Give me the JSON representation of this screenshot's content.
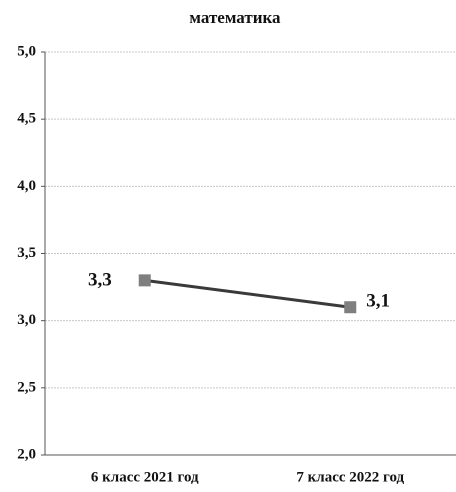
{
  "chart_data": {
    "type": "line",
    "title": "математика",
    "categories": [
      "6 класс 2021 год",
      "7 класс 2022 год"
    ],
    "series": [
      {
        "name": null,
        "color": "#3a3a3a",
        "marker_color": "#7f7f7f",
        "values": [
          3.3,
          3.1
        ],
        "value_labels": [
          "3,3",
          "3,1"
        ]
      }
    ],
    "ylim": [
      2.0,
      5.0
    ],
    "yticks": [
      {
        "value": 2.0,
        "label": "2,0"
      },
      {
        "value": 2.5,
        "label": "2,5"
      },
      {
        "value": 3.0,
        "label": "3,0"
      },
      {
        "value": 3.5,
        "label": "3,5"
      },
      {
        "value": 4.0,
        "label": "4,0"
      },
      {
        "value": 4.5,
        "label": "4,5"
      },
      {
        "value": 5.0,
        "label": "5,0"
      }
    ],
    "grid": true
  }
}
